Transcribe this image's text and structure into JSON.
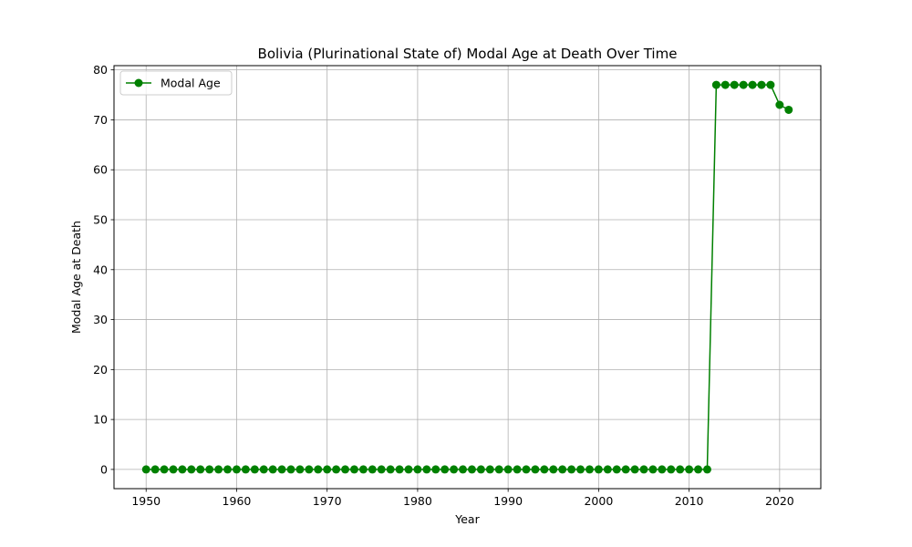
{
  "chart_data": {
    "type": "line",
    "title": "Bolivia (Plurinational State of) Modal Age at Death Over Time",
    "xlabel": "Year",
    "ylabel": "Modal Age at Death",
    "xlim": [
      1946.45,
      2024.55
    ],
    "ylim": [
      -3.85,
      80.85
    ],
    "xticks": [
      1950,
      1960,
      1970,
      1980,
      1990,
      2000,
      2010,
      2020
    ],
    "yticks": [
      0,
      10,
      20,
      30,
      40,
      50,
      60,
      70,
      80
    ],
    "grid": true,
    "legend_position": "upper-left",
    "series": [
      {
        "name": "Modal Age",
        "color": "#008000",
        "marker": "circle",
        "x": [
          1950,
          1951,
          1952,
          1953,
          1954,
          1955,
          1956,
          1957,
          1958,
          1959,
          1960,
          1961,
          1962,
          1963,
          1964,
          1965,
          1966,
          1967,
          1968,
          1969,
          1970,
          1971,
          1972,
          1973,
          1974,
          1975,
          1976,
          1977,
          1978,
          1979,
          1980,
          1981,
          1982,
          1983,
          1984,
          1985,
          1986,
          1987,
          1988,
          1989,
          1990,
          1991,
          1992,
          1993,
          1994,
          1995,
          1996,
          1997,
          1998,
          1999,
          2000,
          2001,
          2002,
          2003,
          2004,
          2005,
          2006,
          2007,
          2008,
          2009,
          2010,
          2011,
          2012,
          2013,
          2014,
          2015,
          2016,
          2017,
          2018,
          2019,
          2020,
          2021
        ],
        "y": [
          0,
          0,
          0,
          0,
          0,
          0,
          0,
          0,
          0,
          0,
          0,
          0,
          0,
          0,
          0,
          0,
          0,
          0,
          0,
          0,
          0,
          0,
          0,
          0,
          0,
          0,
          0,
          0,
          0,
          0,
          0,
          0,
          0,
          0,
          0,
          0,
          0,
          0,
          0,
          0,
          0,
          0,
          0,
          0,
          0,
          0,
          0,
          0,
          0,
          0,
          0,
          0,
          0,
          0,
          0,
          0,
          0,
          0,
          0,
          0,
          0,
          0,
          0,
          77,
          77,
          77,
          77,
          77,
          77,
          77,
          73,
          72
        ]
      }
    ]
  }
}
